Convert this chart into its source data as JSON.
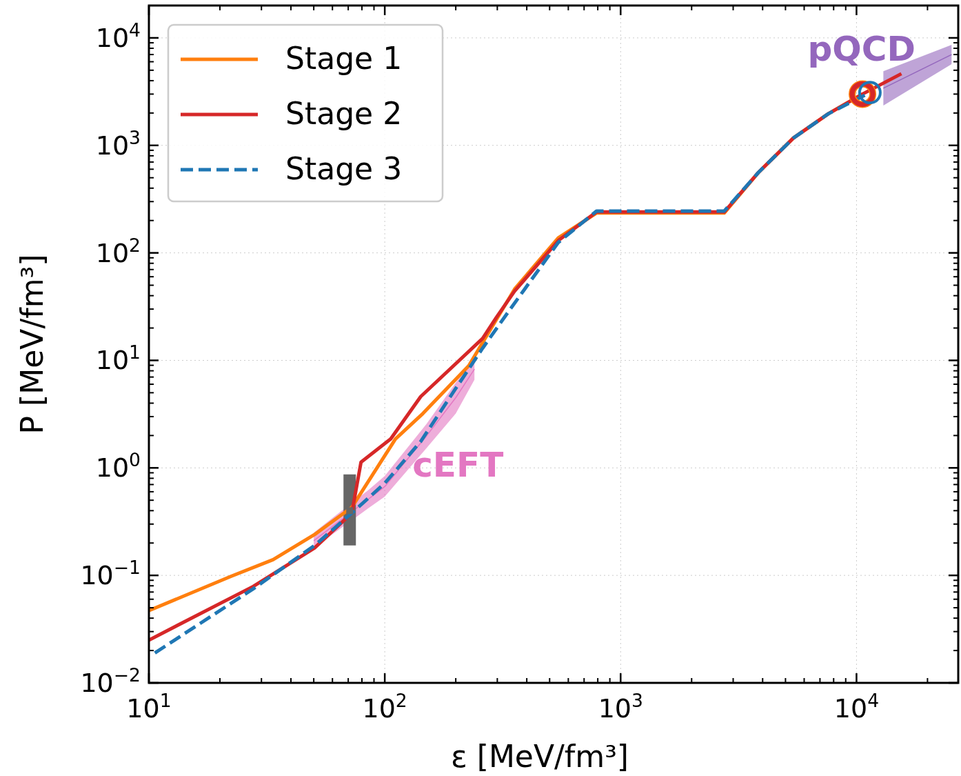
{
  "chart_data": {
    "type": "line",
    "xlabel": "ε [MeV/fm³]",
    "ylabel": "P [MeV/fm³]",
    "log": "xy",
    "grid": true,
    "legend": "top left",
    "line_style": "solid",
    "marker": "none",
    "xlim": [
      10,
      27000
    ],
    "ylim": [
      0.01,
      20000
    ],
    "xticks": [
      {
        "value": 10,
        "label": "10$^{1}$"
      },
      {
        "value": 100,
        "label": "10$^{2}$"
      },
      {
        "value": 1000,
        "label": "10$^{3}$"
      },
      {
        "value": 10000,
        "label": "10$^{4}$"
      }
    ],
    "yticks": [
      {
        "value": 0.01,
        "label": "10$^{−2}$"
      },
      {
        "value": 0.1,
        "label": "10$^{−1}$"
      },
      {
        "value": 1,
        "label": "10$^{0}$"
      },
      {
        "value": 10,
        "label": "10$^{1}$"
      },
      {
        "value": 100,
        "label": "10$^{2}$"
      },
      {
        "value": 1000,
        "label": "10$^{3}$"
      },
      {
        "value": 10000,
        "label": "10$^{4}$"
      }
    ],
    "series": [
      {
        "name": "cEFT",
        "type": "line",
        "color": "#e377c2",
        "x": [
          50,
          85,
          100,
          150,
          200,
          240
        ],
        "values": [
          0.21,
          0.51,
          0.67,
          1.97,
          4.5,
          8.3
        ],
        "lower": [
          0.18,
          0.42,
          0.54,
          1.52,
          3.2,
          6.6
        ],
        "upper": [
          0.25,
          0.62,
          0.84,
          2.55,
          6.2,
          10.4
        ]
      },
      {
        "name": "pQCD",
        "type": "line",
        "color": "#9467bd",
        "x": [
          13000,
          25300
        ],
        "values": [
          3400,
          7000
        ],
        "lower": [
          2350,
          5700
        ],
        "upper": [
          4900,
          8600
        ]
      },
      {
        "type": "scatter",
        "color": "#666666",
        "marker": "square",
        "x": [
          71
        ],
        "values": [
          0.4
        ],
        "errors": [
          [
            0.19,
            0.87
          ]
        ]
      },
      {
        "name": "Stage 1",
        "color": "#ff7f0e",
        "x": [
          10,
          22.3,
          33.6,
          50.4,
          72.5,
          111,
          145,
          227,
          355,
          544,
          790,
          2750,
          3840,
          5400,
          7600,
          10600
        ],
        "values": [
          0.047,
          0.098,
          0.14,
          0.24,
          0.43,
          1.86,
          3.2,
          8.9,
          46,
          138,
          235,
          235,
          560,
          1170,
          1970,
          3000
        ]
      },
      {
        "name": "Stage 2",
        "color": "#d62728",
        "x": [
          10,
          27.7,
          50.4,
          72.5,
          79.3,
          106,
          142,
          260,
          297,
          355,
          544,
          790,
          2750,
          3840,
          5400,
          7600,
          10600,
          15500
        ],
        "values": [
          0.025,
          0.079,
          0.18,
          0.38,
          1.13,
          1.86,
          4.6,
          16,
          25,
          44,
          130,
          240,
          240,
          560,
          1170,
          1970,
          3000,
          4640
        ]
      },
      {
        "name": "Stage 3",
        "color": "#1f77b4",
        "line_style": "dashed",
        "x": [
          10.6,
          27.7,
          50.4,
          72.5,
          100,
          142,
          199,
          260,
          329,
          544,
          790,
          2750,
          3840,
          5400,
          7600,
          11400
        ],
        "values": [
          0.019,
          0.075,
          0.19,
          0.38,
          0.72,
          1.76,
          5.4,
          13,
          27,
          125,
          245,
          245,
          560,
          1170,
          1970,
          3100
        ]
      },
      {
        "type": "scatter",
        "marker": "circle",
        "color": "#ff7f0e",
        "x": [
          10600
        ],
        "values": [
          3000
        ]
      },
      {
        "type": "scatter",
        "marker": "circle",
        "color": "#d62728",
        "x": [
          10600
        ],
        "values": [
          3000
        ]
      },
      {
        "type": "scatter",
        "marker": "circle",
        "color": "#1f77b4",
        "x": [
          11400
        ],
        "values": [
          3100
        ]
      }
    ]
  }
}
